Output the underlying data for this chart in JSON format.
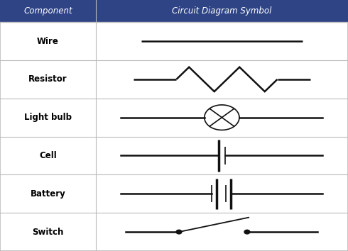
{
  "title": "Circuit Diagram Symbol",
  "col1_header": "Component",
  "col2_header": "Circuit Diagram Symbol",
  "components": [
    "Wire",
    "Resistor",
    "Light bulb",
    "Cell",
    "Battery",
    "Switch"
  ],
  "header_bg": "#2e4485",
  "header_fg": "#ffffff",
  "row_bg": "#ffffff",
  "border_color": "#bbbbbb",
  "symbol_color": "#111111",
  "n_rows": 6,
  "col_split": 0.275,
  "figsize": [
    4.9,
    3.54
  ],
  "dpi": 100
}
